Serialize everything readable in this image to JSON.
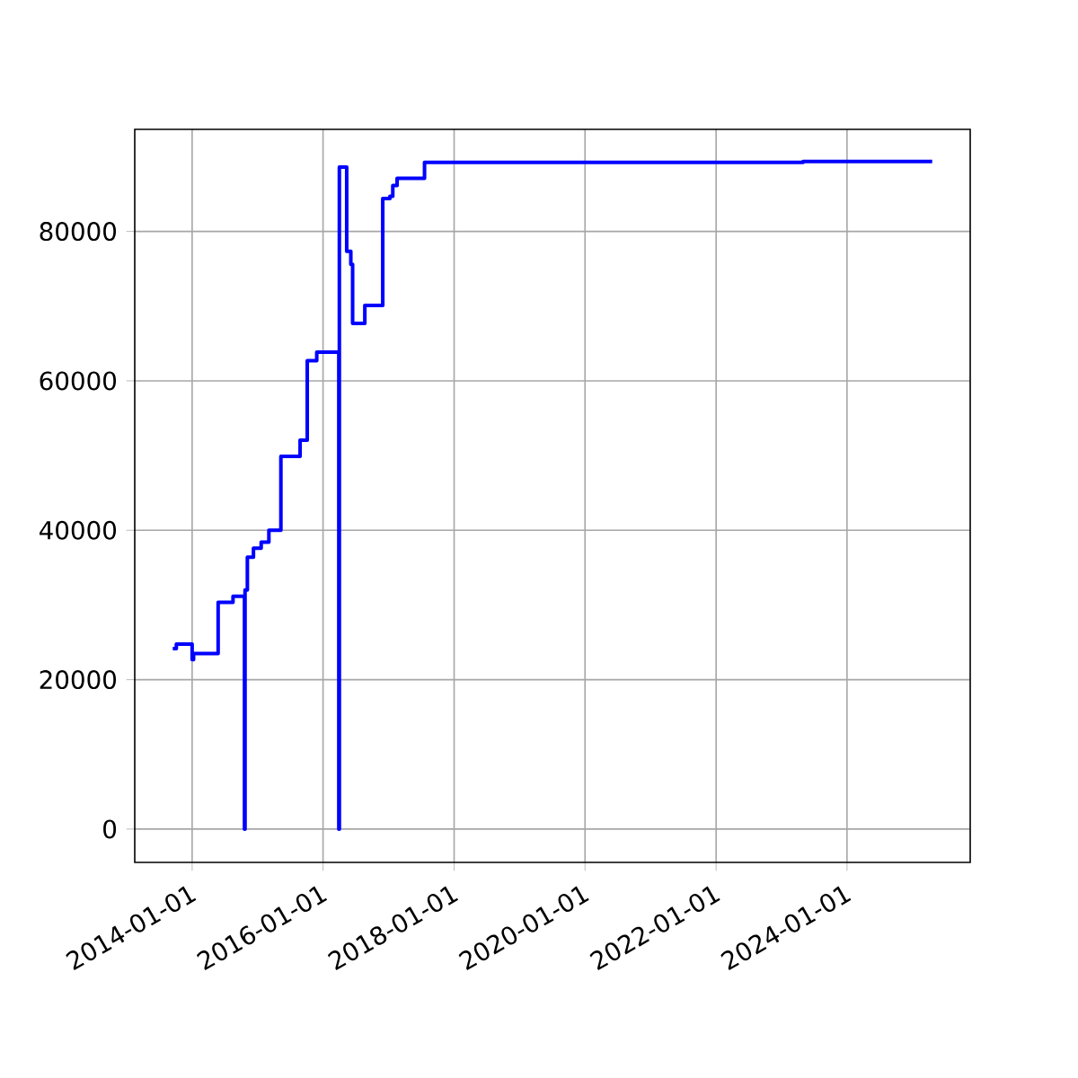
{
  "chart_data": {
    "type": "step",
    "color": "#0000ff",
    "grid": true,
    "x": [
      "2013-09-15",
      "2013-10-05",
      "2014-01-01",
      "2014-01-09",
      "2014-05-26",
      "2014-08-17",
      "2014-10-20",
      "2014-10-23",
      "2014-11-05",
      "2014-12-09",
      "2015-01-21",
      "2015-03-05",
      "2015-05-11",
      "2015-08-26",
      "2015-10-05",
      "2015-11-27",
      "2016-03-29",
      "2016-04-01",
      "2016-05-12",
      "2016-06-04",
      "2016-06-14",
      "2016-08-21",
      "2016-11-29",
      "2017-01-08",
      "2017-01-24",
      "2017-02-17",
      "2017-07-20",
      "2023-05-01",
      "2025-04-20"
    ],
    "values": [
      24150,
      24750,
      22700,
      23500,
      30350,
      31150,
      0,
      32000,
      36400,
      37600,
      38400,
      40000,
      49900,
      52050,
      62700,
      63850,
      0,
      88600,
      77350,
      75600,
      67700,
      70100,
      84400,
      84700,
      86150,
      87100,
      89250,
      89350,
      89350
    ],
    "xlim": [
      "2013-02-15",
      "2025-11-18"
    ],
    "ylim": [
      -4460,
      93660
    ],
    "xticks": [
      "2014-01-01",
      "2016-01-01",
      "2018-01-01",
      "2020-01-01",
      "2022-01-01",
      "2024-01-01"
    ],
    "yticks": [
      0,
      20000,
      40000,
      60000,
      80000
    ]
  }
}
